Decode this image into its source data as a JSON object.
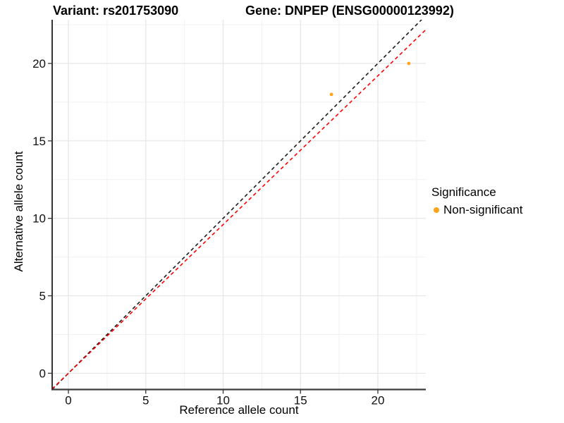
{
  "header": {
    "variant_title": "Variant: rs201753090",
    "gene_title": "Gene: DNPEP (ENSG00000123992)"
  },
  "chart_data": {
    "type": "scatter",
    "titles": {
      "left": "Variant: rs201753090",
      "right": "Gene: DNPEP (ENSG00000123992)"
    },
    "xlabel": "Reference allele count",
    "ylabel": "Alternative allele count",
    "xlim": [
      -1.05,
      23.1
    ],
    "ylim": [
      -1.05,
      22.82
    ],
    "x_ticks": [
      0,
      5,
      10,
      15,
      20
    ],
    "y_ticks": [
      0,
      5,
      10,
      15,
      20
    ],
    "x_minor_ticks": [
      2.5,
      7.5,
      12.5,
      17.5,
      22.5
    ],
    "y_minor_ticks": [
      2.5,
      7.5,
      12.5,
      17.5,
      22.5
    ],
    "grid": true,
    "points": {
      "color": "#FFA319",
      "data": [
        {
          "x": 17,
          "y": 18
        },
        {
          "x": 22,
          "y": 20
        }
      ]
    },
    "lines": [
      {
        "name": "identity-line",
        "slope": 1.0,
        "intercept": 0,
        "color": "#1A1A1A",
        "style": "dashed"
      },
      {
        "name": "fit-line",
        "slope": 0.96,
        "intercept": 0,
        "color": "#FF0000",
        "style": "dashed"
      }
    ],
    "legend": {
      "title": "Significance",
      "position": "right",
      "items": [
        {
          "label": "Non-significant",
          "color": "#FFA319"
        }
      ]
    }
  }
}
